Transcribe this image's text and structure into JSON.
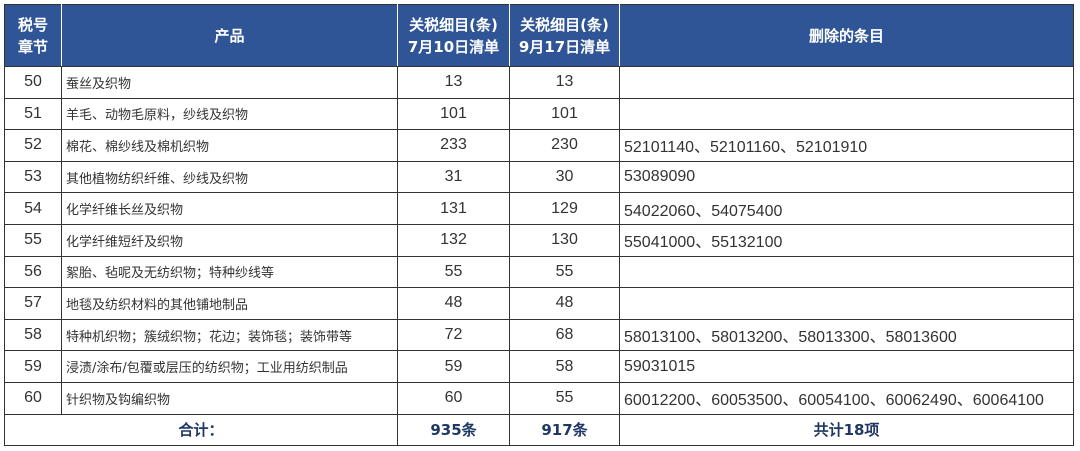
{
  "header": {
    "chapter": [
      "税号",
      "章节"
    ],
    "product": "产品",
    "jul": [
      "关税细目(条)",
      "7月10日清单"
    ],
    "sep": [
      "关税细目(条)",
      "9月17日清单"
    ],
    "deleted": "删除的条目"
  },
  "rows": [
    {
      "chapter": "50",
      "product": "蚕丝及织物",
      "jul": "13",
      "sep": "13",
      "deleted": ""
    },
    {
      "chapter": "51",
      "product": "羊毛、动物毛原料，纱线及织物",
      "jul": "101",
      "sep": "101",
      "deleted": ""
    },
    {
      "chapter": "52",
      "product": "棉花、棉纱线及棉机织物",
      "jul": "233",
      "sep": "230",
      "deleted": "52101140、52101160、52101910"
    },
    {
      "chapter": "53",
      "product": "其他植物纺织纤维、纱线及织物",
      "jul": "31",
      "sep": "30",
      "deleted": "53089090"
    },
    {
      "chapter": "54",
      "product": "化学纤维长丝及织物",
      "jul": "131",
      "sep": "129",
      "deleted": "54022060、54075400"
    },
    {
      "chapter": "55",
      "product": "化学纤维短纤及织物",
      "jul": "132",
      "sep": "130",
      "deleted": "55041000、55132100"
    },
    {
      "chapter": "56",
      "product": "絮胎、毡呢及无纺织物；特种纱线等",
      "jul": "55",
      "sep": "55",
      "deleted": ""
    },
    {
      "chapter": "57",
      "product": "地毯及纺织材料的其他铺地制品",
      "jul": "48",
      "sep": "48",
      "deleted": ""
    },
    {
      "chapter": "58",
      "product": "特种机织物；簇绒织物；花边；装饰毯；装饰带等",
      "jul": "72",
      "sep": "68",
      "deleted": "58013100、58013200、58013300、58013600"
    },
    {
      "chapter": "59",
      "product": "浸渍/涂布/包覆或层压的纺织物；工业用纺织制品",
      "jul": "59",
      "sep": "58",
      "deleted": "59031015"
    },
    {
      "chapter": "60",
      "product": "针织物及钩编织物",
      "jul": "60",
      "sep": "55",
      "deleted": "60012200、60053500、60054100、60062490、60064100"
    }
  ],
  "total": {
    "label": "合计：",
    "jul": "935条",
    "sep": "917条",
    "deleted": "共计18项"
  },
  "colors": {
    "header_bg": "#2f5597"
  }
}
